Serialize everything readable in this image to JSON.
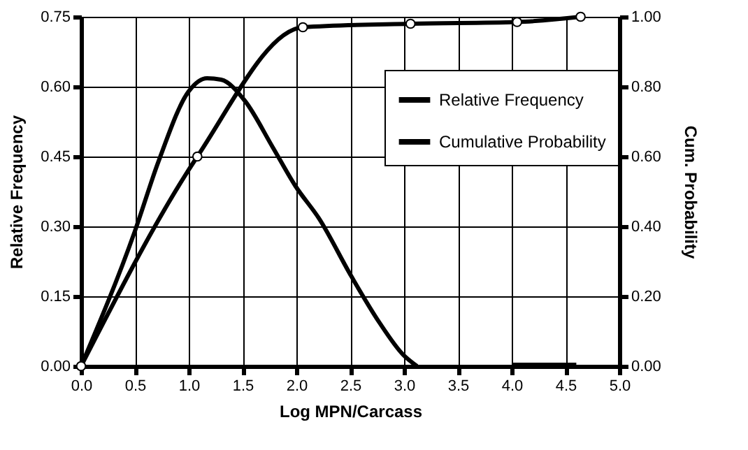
{
  "chart_data": {
    "type": "line",
    "xlabel": "Log MPN/Carcass",
    "ylabel": "Relative Frequency",
    "y2label": "Cum. Probability",
    "xlim": [
      0,
      5
    ],
    "xticks": [
      {
        "value": 0,
        "label": "0.0"
      },
      0.5,
      {
        "value": 1,
        "label": "1.0"
      },
      1.5,
      {
        "value": 2,
        "label": "2.0"
      },
      2.5,
      {
        "value": 3,
        "label": "3.0"
      },
      3.5,
      {
        "value": 4,
        "label": "4.0"
      },
      4.5,
      {
        "value": 5,
        "label": "5.0"
      }
    ],
    "ylim": [
      0,
      0.75
    ],
    "yticks": [
      {
        "value": 0,
        "label": "0.00"
      },
      0.15,
      {
        "value": 0.3,
        "label": "0.30"
      },
      0.45,
      {
        "value": 0.6,
        "label": "0.60"
      },
      0.75
    ],
    "y2lim": [
      0,
      1
    ],
    "y2ticks": [
      {
        "value": 0,
        "label": "0.00"
      },
      {
        "value": 0.2,
        "label": "0.20"
      },
      {
        "value": 0.4,
        "label": "0.40"
      },
      {
        "value": 0.6,
        "label": "0.60"
      },
      {
        "value": 0.8,
        "label": "0.80"
      },
      {
        "value": 1,
        "label": "1.00"
      }
    ],
    "grid": true,
    "legend": "top right",
    "series": [
      {
        "name": "Relative Frequency",
        "color": "#000000",
        "marker": "none",
        "x": [
          0,
          0.5,
          0.72,
          1.0,
          1.17,
          1.3,
          1.52,
          1.78,
          1.99,
          2.21,
          2.51,
          2.77,
          2.99,
          3.12,
          3.5,
          4.0,
          4.6
        ],
        "values": [
          0,
          0.29,
          0.44,
          0.59,
          0.618,
          0.615,
          0.57,
          0.47,
          0.387,
          0.317,
          0.193,
          0.094,
          0.025,
          0,
          null,
          0.003,
          0.003
        ]
      },
      {
        "name": "Cumulative Probability",
        "color": "#000000",
        "marker": "circle",
        "axis": "y2",
        "x": [
          0,
          1.08,
          2.06,
          3.06,
          4.05,
          4.64
        ],
        "values": [
          0,
          0.6,
          0.97,
          0.98,
          0.985,
          1.0
        ]
      }
    ]
  }
}
